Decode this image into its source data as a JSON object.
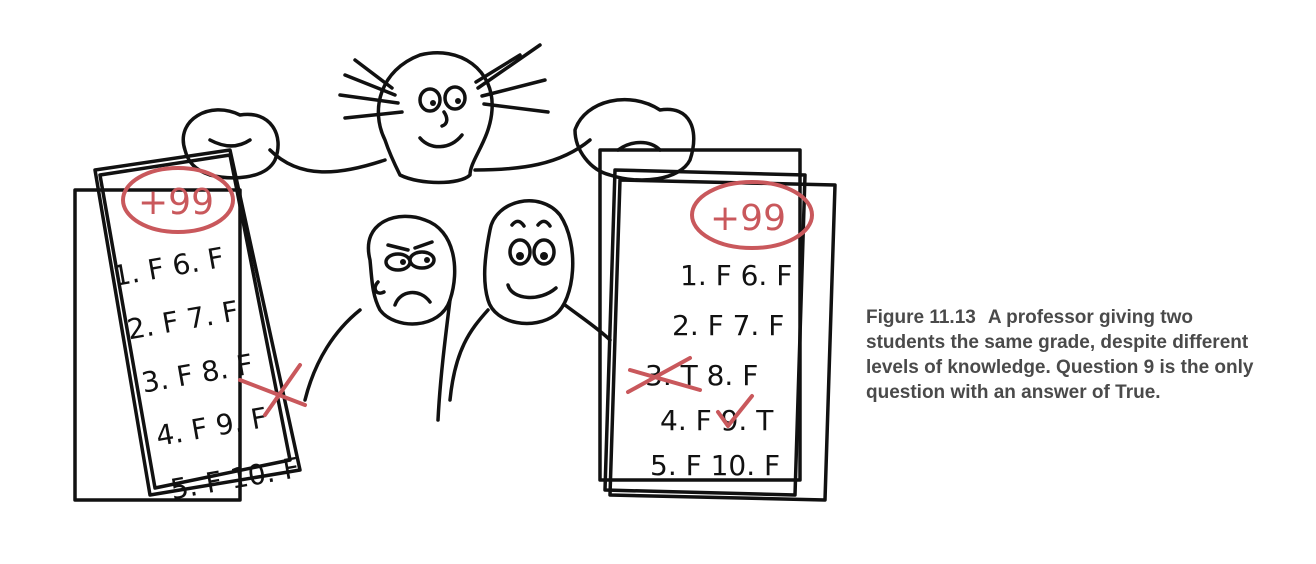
{
  "figure": {
    "label": "Figure 11.13",
    "caption": "A professor giving two students the same grade, despite different levels of knowledge. Question 9 is the only question with an answer of True."
  },
  "illustration": {
    "left_paper": {
      "grade": "+99",
      "answers": [
        "1. F 6. F",
        "2. F 7. F",
        "3. F 8. F",
        "4. F 9. F",
        "5. F 10. F"
      ]
    },
    "right_paper": {
      "grade": "+99",
      "answers": [
        "1. F 6. F",
        "2. F 7. F",
        "3. T 8. F",
        "4. F 9. T",
        "5. F 10. F"
      ]
    },
    "colors": {
      "ink": "#111111",
      "grade_red": "#c9585c",
      "caption_text": "#4a4a4a"
    }
  }
}
